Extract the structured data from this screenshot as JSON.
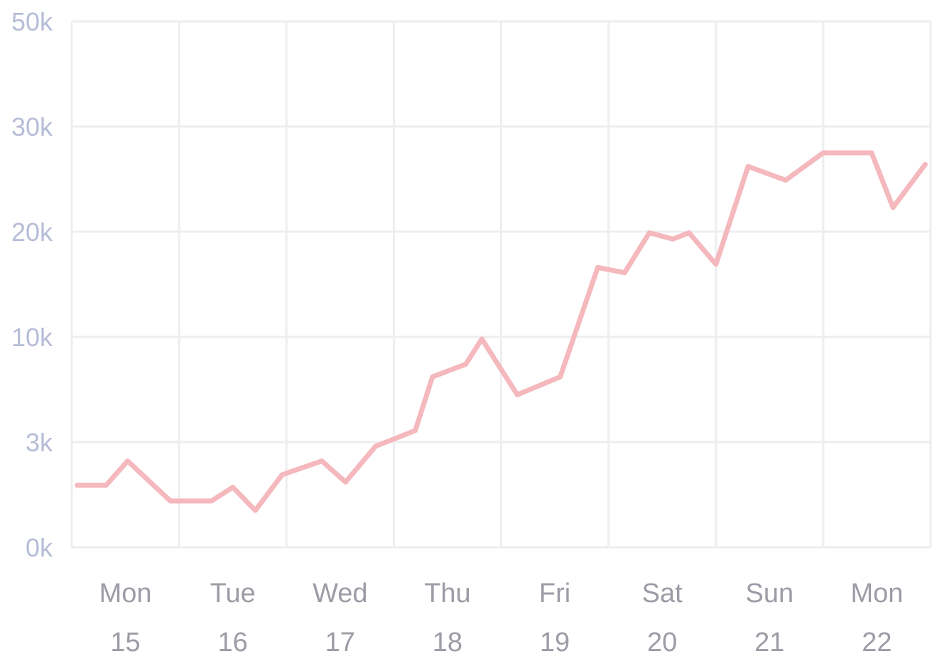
{
  "chart_data": {
    "type": "line",
    "y_ticks": [
      "0k",
      "3k",
      "10k",
      "20k",
      "30k",
      "50k"
    ],
    "x_ticks": [
      {
        "day": "Mon",
        "num": "15"
      },
      {
        "day": "Tue",
        "num": "16"
      },
      {
        "day": "Wed",
        "num": "17"
      },
      {
        "day": "Thu",
        "num": "18"
      },
      {
        "day": "Fri",
        "num": "19"
      },
      {
        "day": "Sat",
        "num": "20"
      },
      {
        "day": "Sun",
        "num": "21"
      },
      {
        "day": "Mon",
        "num": "22"
      }
    ],
    "grid": true,
    "line_color": "#f4b8bd",
    "series": [
      {
        "note_units": "x in days from Mon 15 00:00 (0-8); y as position on evenly spaced tick scale (0=0k ... 5=50k)",
        "x": [
          0.05,
          0.32,
          0.52,
          0.92,
          1.3,
          1.5,
          1.71,
          1.96,
          2.33,
          2.55,
          2.83,
          3.2,
          3.36,
          3.67,
          3.82,
          4.15,
          4.55,
          4.9,
          5.15,
          5.38,
          5.6,
          5.75,
          6.0,
          6.3,
          6.65,
          7.0,
          7.45,
          7.65,
          7.95
        ],
        "y": [
          0.59,
          0.59,
          0.82,
          0.44,
          0.44,
          0.57,
          0.35,
          0.69,
          0.82,
          0.62,
          0.96,
          1.11,
          1.62,
          1.74,
          1.98,
          1.45,
          1.62,
          2.66,
          2.61,
          2.99,
          2.93,
          2.99,
          2.69,
          3.62,
          3.49,
          3.75,
          3.75,
          3.23,
          3.64
        ]
      }
    ]
  }
}
